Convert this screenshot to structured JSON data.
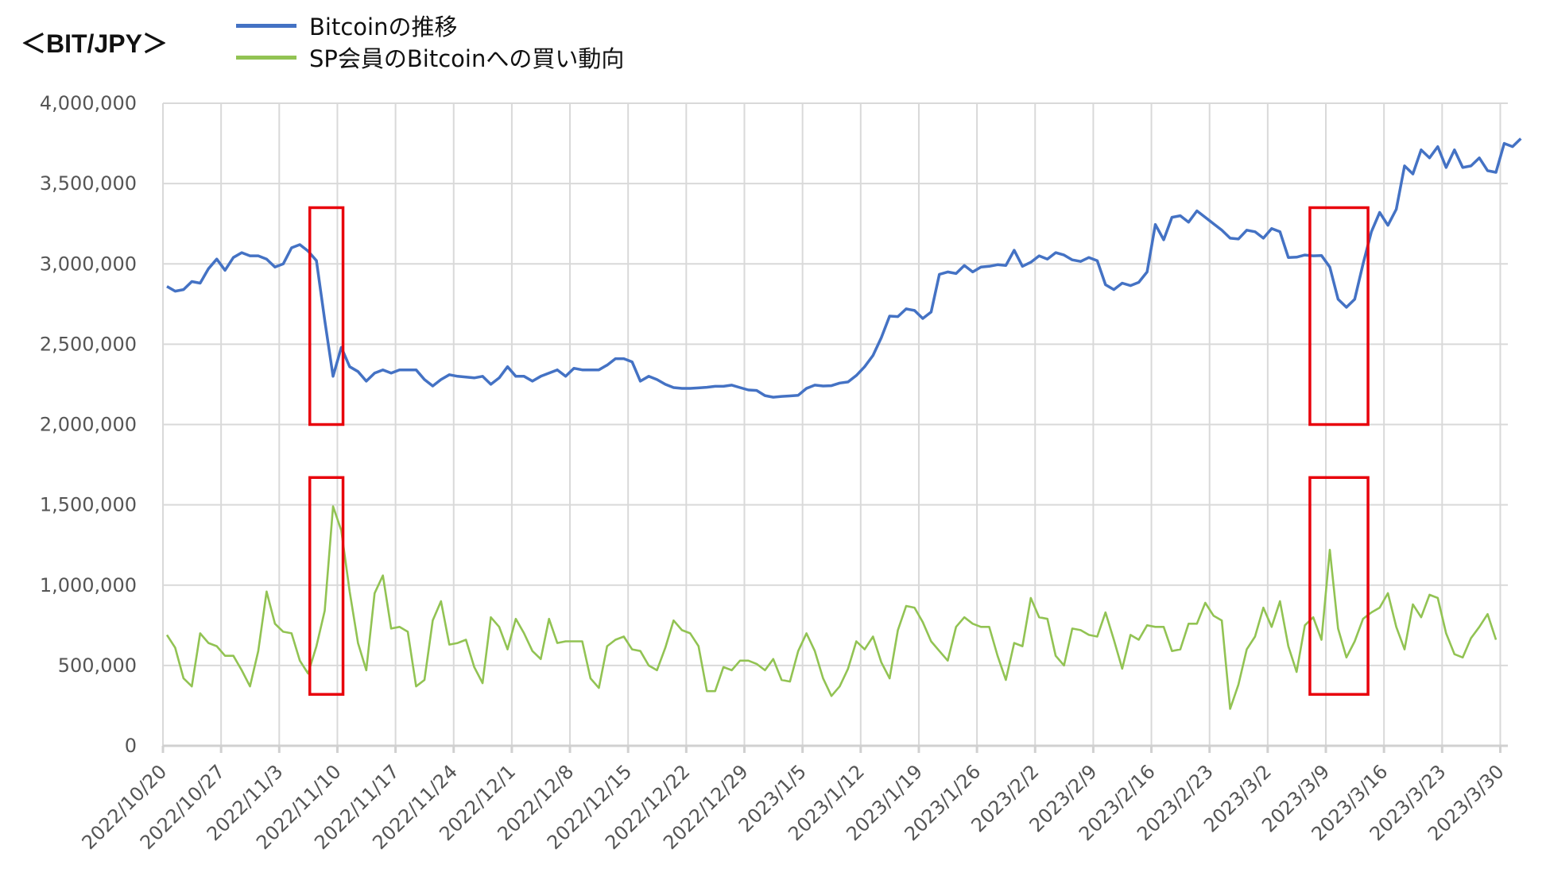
{
  "chart_data": {
    "type": "line",
    "title": "＜BIT/JPY＞",
    "xlabel": "",
    "ylabel": "",
    "ylim": [
      0,
      4000000
    ],
    "yticks": [
      0,
      500000,
      1000000,
      1500000,
      2000000,
      2500000,
      3000000,
      3500000,
      4000000
    ],
    "ytick_labels": [
      "0",
      "500,000",
      "1,000,000",
      "1,500,000",
      "2,000,000",
      "2,500,000",
      "3,000,000",
      "3,500,000",
      "4,000,000"
    ],
    "xtick_labels": [
      "2022/10/20",
      "2022/10/27",
      "2022/11/3",
      "2022/11/10",
      "2022/11/17",
      "2022/11/24",
      "2022/12/1",
      "2022/12/8",
      "2022/12/15",
      "2022/12/22",
      "2022/12/29",
      "2023/1/5",
      "2023/1/12",
      "2023/1/19",
      "2023/1/26",
      "2023/2/2",
      "2023/2/9",
      "2023/2/16",
      "2023/2/23",
      "2023/3/2",
      "2023/3/9",
      "2023/3/16",
      "2023/3/23",
      "2023/3/30"
    ],
    "x_start": "2022/10/20",
    "x_step_days": 1,
    "grid": true,
    "legend_position": "top",
    "series": [
      {
        "name": "Bitcoinの推移",
        "color": "#4472C4",
        "values": [
          2860000,
          2830000,
          2840000,
          2890000,
          2880000,
          2970000,
          3030000,
          2960000,
          3040000,
          3070000,
          3050000,
          3050000,
          3030000,
          2980000,
          3000000,
          3100000,
          3120000,
          3080000,
          3020000,
          2650000,
          2300000,
          2480000,
          2360000,
          2330000,
          2270000,
          2320000,
          2340000,
          2320000,
          2340000,
          2340000,
          2340000,
          2280000,
          2240000,
          2280000,
          2310000,
          2300000,
          2295000,
          2290000,
          2300000,
          2250000,
          2290000,
          2360000,
          2300000,
          2300000,
          2270000,
          2300000,
          2320000,
          2340000,
          2300000,
          2350000,
          2340000,
          2340000,
          2340000,
          2370000,
          2410000,
          2410000,
          2390000,
          2270000,
          2300000,
          2280000,
          2250000,
          2230000,
          2225000,
          2225000,
          2228000,
          2232000,
          2238000,
          2238000,
          2245000,
          2230000,
          2215000,
          2212000,
          2180000,
          2170000,
          2175000,
          2178000,
          2182000,
          2225000,
          2245000,
          2240000,
          2242000,
          2258000,
          2265000,
          2305000,
          2360000,
          2430000,
          2540000,
          2675000,
          2672000,
          2720000,
          2710000,
          2660000,
          2700000,
          2935000,
          2950000,
          2940000,
          2990000,
          2950000,
          2980000,
          2985000,
          2995000,
          2990000,
          3085000,
          2985000,
          3010000,
          3050000,
          3030000,
          3070000,
          3055000,
          3025000,
          3015000,
          3040000,
          3020000,
          2870000,
          2840000,
          2880000,
          2865000,
          2885000,
          2950000,
          3245000,
          3150000,
          3290000,
          3300000,
          3260000,
          3330000,
          3290000,
          3250000,
          3210000,
          3160000,
          3155000,
          3210000,
          3200000,
          3160000,
          3220000,
          3200000,
          3040000,
          3042000,
          3055000,
          3050000,
          3052000,
          2980000,
          2780000,
          2730000,
          2780000,
          3000000,
          3200000,
          3320000,
          3240000,
          3340000,
          3610000,
          3560000,
          3710000,
          3660000,
          3730000,
          3600000,
          3710000,
          3600000,
          3610000,
          3660000,
          3580000,
          3570000,
          3750000,
          3730000,
          3780000
        ]
      },
      {
        "name": "SP会員のBitcoinへの買い動向",
        "color": "#92C353",
        "values": [
          690000,
          610000,
          420000,
          370000,
          700000,
          640000,
          620000,
          560000,
          560000,
          470000,
          370000,
          590000,
          960000,
          760000,
          710000,
          700000,
          530000,
          450000,
          620000,
          840000,
          1490000,
          1340000,
          960000,
          640000,
          470000,
          950000,
          1060000,
          730000,
          740000,
          710000,
          370000,
          410000,
          780000,
          900000,
          630000,
          640000,
          660000,
          490000,
          390000,
          800000,
          740000,
          600000,
          790000,
          700000,
          590000,
          540000,
          790000,
          640000,
          650000,
          650000,
          650000,
          420000,
          360000,
          620000,
          660000,
          680000,
          600000,
          590000,
          500000,
          470000,
          610000,
          780000,
          720000,
          700000,
          620000,
          340000,
          340000,
          490000,
          470000,
          530000,
          530000,
          510000,
          470000,
          540000,
          410000,
          400000,
          590000,
          700000,
          590000,
          420000,
          310000,
          370000,
          480000,
          650000,
          600000,
          680000,
          520000,
          420000,
          720000,
          870000,
          860000,
          770000,
          650000,
          590000,
          530000,
          740000,
          800000,
          760000,
          740000,
          740000,
          560000,
          410000,
          640000,
          620000,
          920000,
          800000,
          790000,
          560000,
          500000,
          730000,
          720000,
          690000,
          680000,
          830000,
          660000,
          480000,
          690000,
          660000,
          750000,
          740000,
          740000,
          590000,
          600000,
          760000,
          760000,
          890000,
          810000,
          780000,
          230000,
          380000,
          600000,
          680000,
          860000,
          740000,
          900000,
          620000,
          460000,
          750000,
          800000,
          660000,
          1220000,
          730000,
          550000,
          650000,
          790000,
          830000,
          860000,
          950000,
          740000,
          600000,
          880000,
          800000,
          940000,
          920000,
          700000,
          570000,
          550000,
          670000,
          740000,
          820000,
          660000
        ]
      }
    ],
    "annotations": [
      {
        "type": "rect",
        "color": "#E8000B",
        "label": "highlight-2022-11-09-price",
        "x_day_range": [
          17.2,
          21.2
        ],
        "y_range": [
          2000000,
          3350000
        ]
      },
      {
        "type": "rect",
        "color": "#E8000B",
        "label": "highlight-2022-11-09-buys",
        "x_day_range": [
          17.2,
          21.2
        ],
        "y_range": [
          320000,
          1670000
        ]
      },
      {
        "type": "rect",
        "color": "#E8000B",
        "label": "highlight-2023-03-10-price",
        "x_day_range": [
          137.6,
          144.6
        ],
        "y_range": [
          2000000,
          3350000
        ]
      },
      {
        "type": "rect",
        "color": "#E8000B",
        "label": "highlight-2023-03-10-buys",
        "x_day_range": [
          137.6,
          144.6
        ],
        "y_range": [
          320000,
          1670000
        ]
      }
    ]
  },
  "header": {
    "title": "＜BIT/JPY＞",
    "legend": [
      {
        "label": "Bitcoinの推移",
        "color": "#4472C4"
      },
      {
        "label": "SP会員のBitcoinへの買い動向",
        "color": "#92C353"
      }
    ]
  }
}
